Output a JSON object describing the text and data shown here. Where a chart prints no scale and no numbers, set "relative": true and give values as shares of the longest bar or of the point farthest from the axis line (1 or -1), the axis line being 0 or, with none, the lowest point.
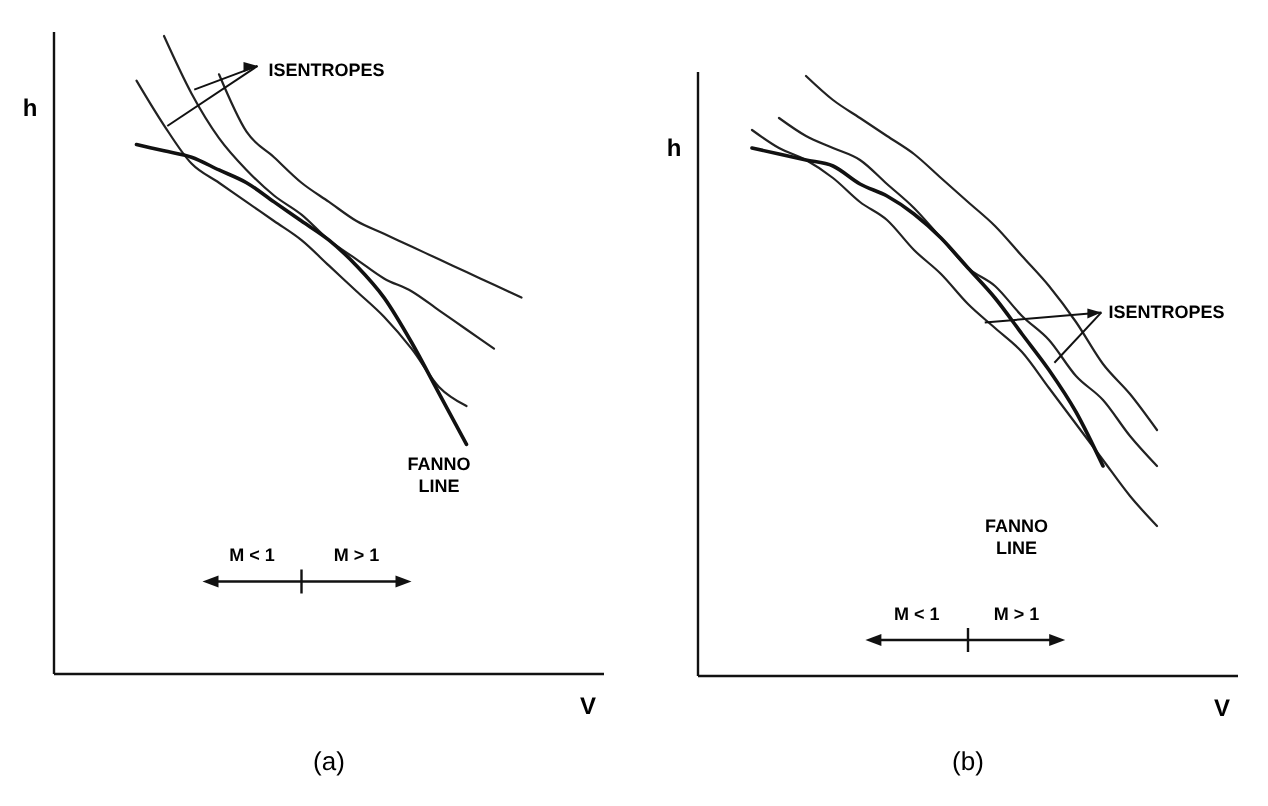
{
  "chart_data": [
    {
      "type": "line",
      "title": "(a)",
      "xlabel": "V",
      "ylabel": "h",
      "relative": true,
      "categories": [
        null,
        null,
        null,
        null,
        null,
        null,
        null,
        null,
        null,
        null,
        null,
        null,
        null,
        null,
        null,
        null,
        null,
        null,
        null,
        null,
        null
      ],
      "series": [
        {
          "color": "#222222",
          "values": [
            null,
            null,
            null,
            0.93,
            0.86,
            0.8,
            0.77,
            0.74,
            0.71,
            0.68,
            0.64,
            0.6,
            0.56,
            0.51,
            0.45,
            0.42,
            null,
            null,
            null,
            null,
            null
          ]
        },
        {
          "color": "#222222",
          "values": [
            null,
            null,
            null,
            null,
            1,
            0.91,
            0.84,
            0.79,
            0.75,
            0.72,
            0.68,
            0.65,
            0.62,
            0.6,
            0.57,
            0.54,
            0.51,
            null,
            null,
            null,
            null
          ]
        },
        {
          "color": "#222222",
          "values": [
            null,
            null,
            null,
            null,
            null,
            null,
            0.94,
            0.85,
            0.81,
            0.77,
            0.74,
            0.71,
            0.69,
            0.67,
            0.65,
            0.63,
            0.61,
            0.59,
            null,
            null,
            null
          ]
        },
        {
          "color": "#111111",
          "values": [
            null,
            null,
            null,
            0.83,
            0.82,
            0.81,
            0.79,
            0.77,
            0.74,
            0.71,
            0.68,
            0.64,
            0.59,
            0.52,
            0.44,
            0.36,
            null,
            null,
            null,
            null,
            null
          ]
        }
      ],
      "annotations": [
        "ISENTROPES",
        "FANNO LINE",
        "M < 1",
        "M > 1"
      ]
    },
    {
      "type": "line",
      "title": "(b)",
      "xlabel": "V",
      "ylabel": "h",
      "relative": true,
      "categories": [
        null,
        null,
        null,
        null,
        null,
        null,
        null,
        null,
        null,
        null,
        null,
        null,
        null,
        null,
        null,
        null,
        null,
        null,
        null,
        null,
        null
      ],
      "series": [
        {
          "color": "#222222",
          "values": [
            null,
            null,
            0.91,
            0.88,
            0.86,
            0.83,
            0.79,
            0.76,
            0.71,
            0.67,
            0.62,
            0.58,
            0.54,
            0.48,
            0.42,
            0.36,
            0.3,
            0.25,
            null,
            null,
            null
          ]
        },
        {
          "color": "#222222",
          "values": [
            null,
            null,
            null,
            0.93,
            0.9,
            0.88,
            0.86,
            0.82,
            0.78,
            0.73,
            0.68,
            0.65,
            0.6,
            0.56,
            0.5,
            0.46,
            0.4,
            0.35,
            null,
            null,
            null
          ]
        },
        {
          "color": "#222222",
          "values": [
            null,
            null,
            null,
            null,
            1,
            0.96,
            0.93,
            0.9,
            0.87,
            0.83,
            0.79,
            0.75,
            0.7,
            0.65,
            0.59,
            0.52,
            0.47,
            0.41,
            null,
            null,
            null
          ]
        },
        {
          "color": "#111111",
          "values": [
            null,
            null,
            0.88,
            0.87,
            0.86,
            0.85,
            0.82,
            0.8,
            0.77,
            0.73,
            0.68,
            0.63,
            0.57,
            0.51,
            0.44,
            0.35,
            null,
            null,
            null,
            null,
            null
          ]
        }
      ],
      "annotations": [
        "ISENTROPES",
        "FANNO LINE",
        "M < 1",
        "M > 1"
      ]
    }
  ]
}
